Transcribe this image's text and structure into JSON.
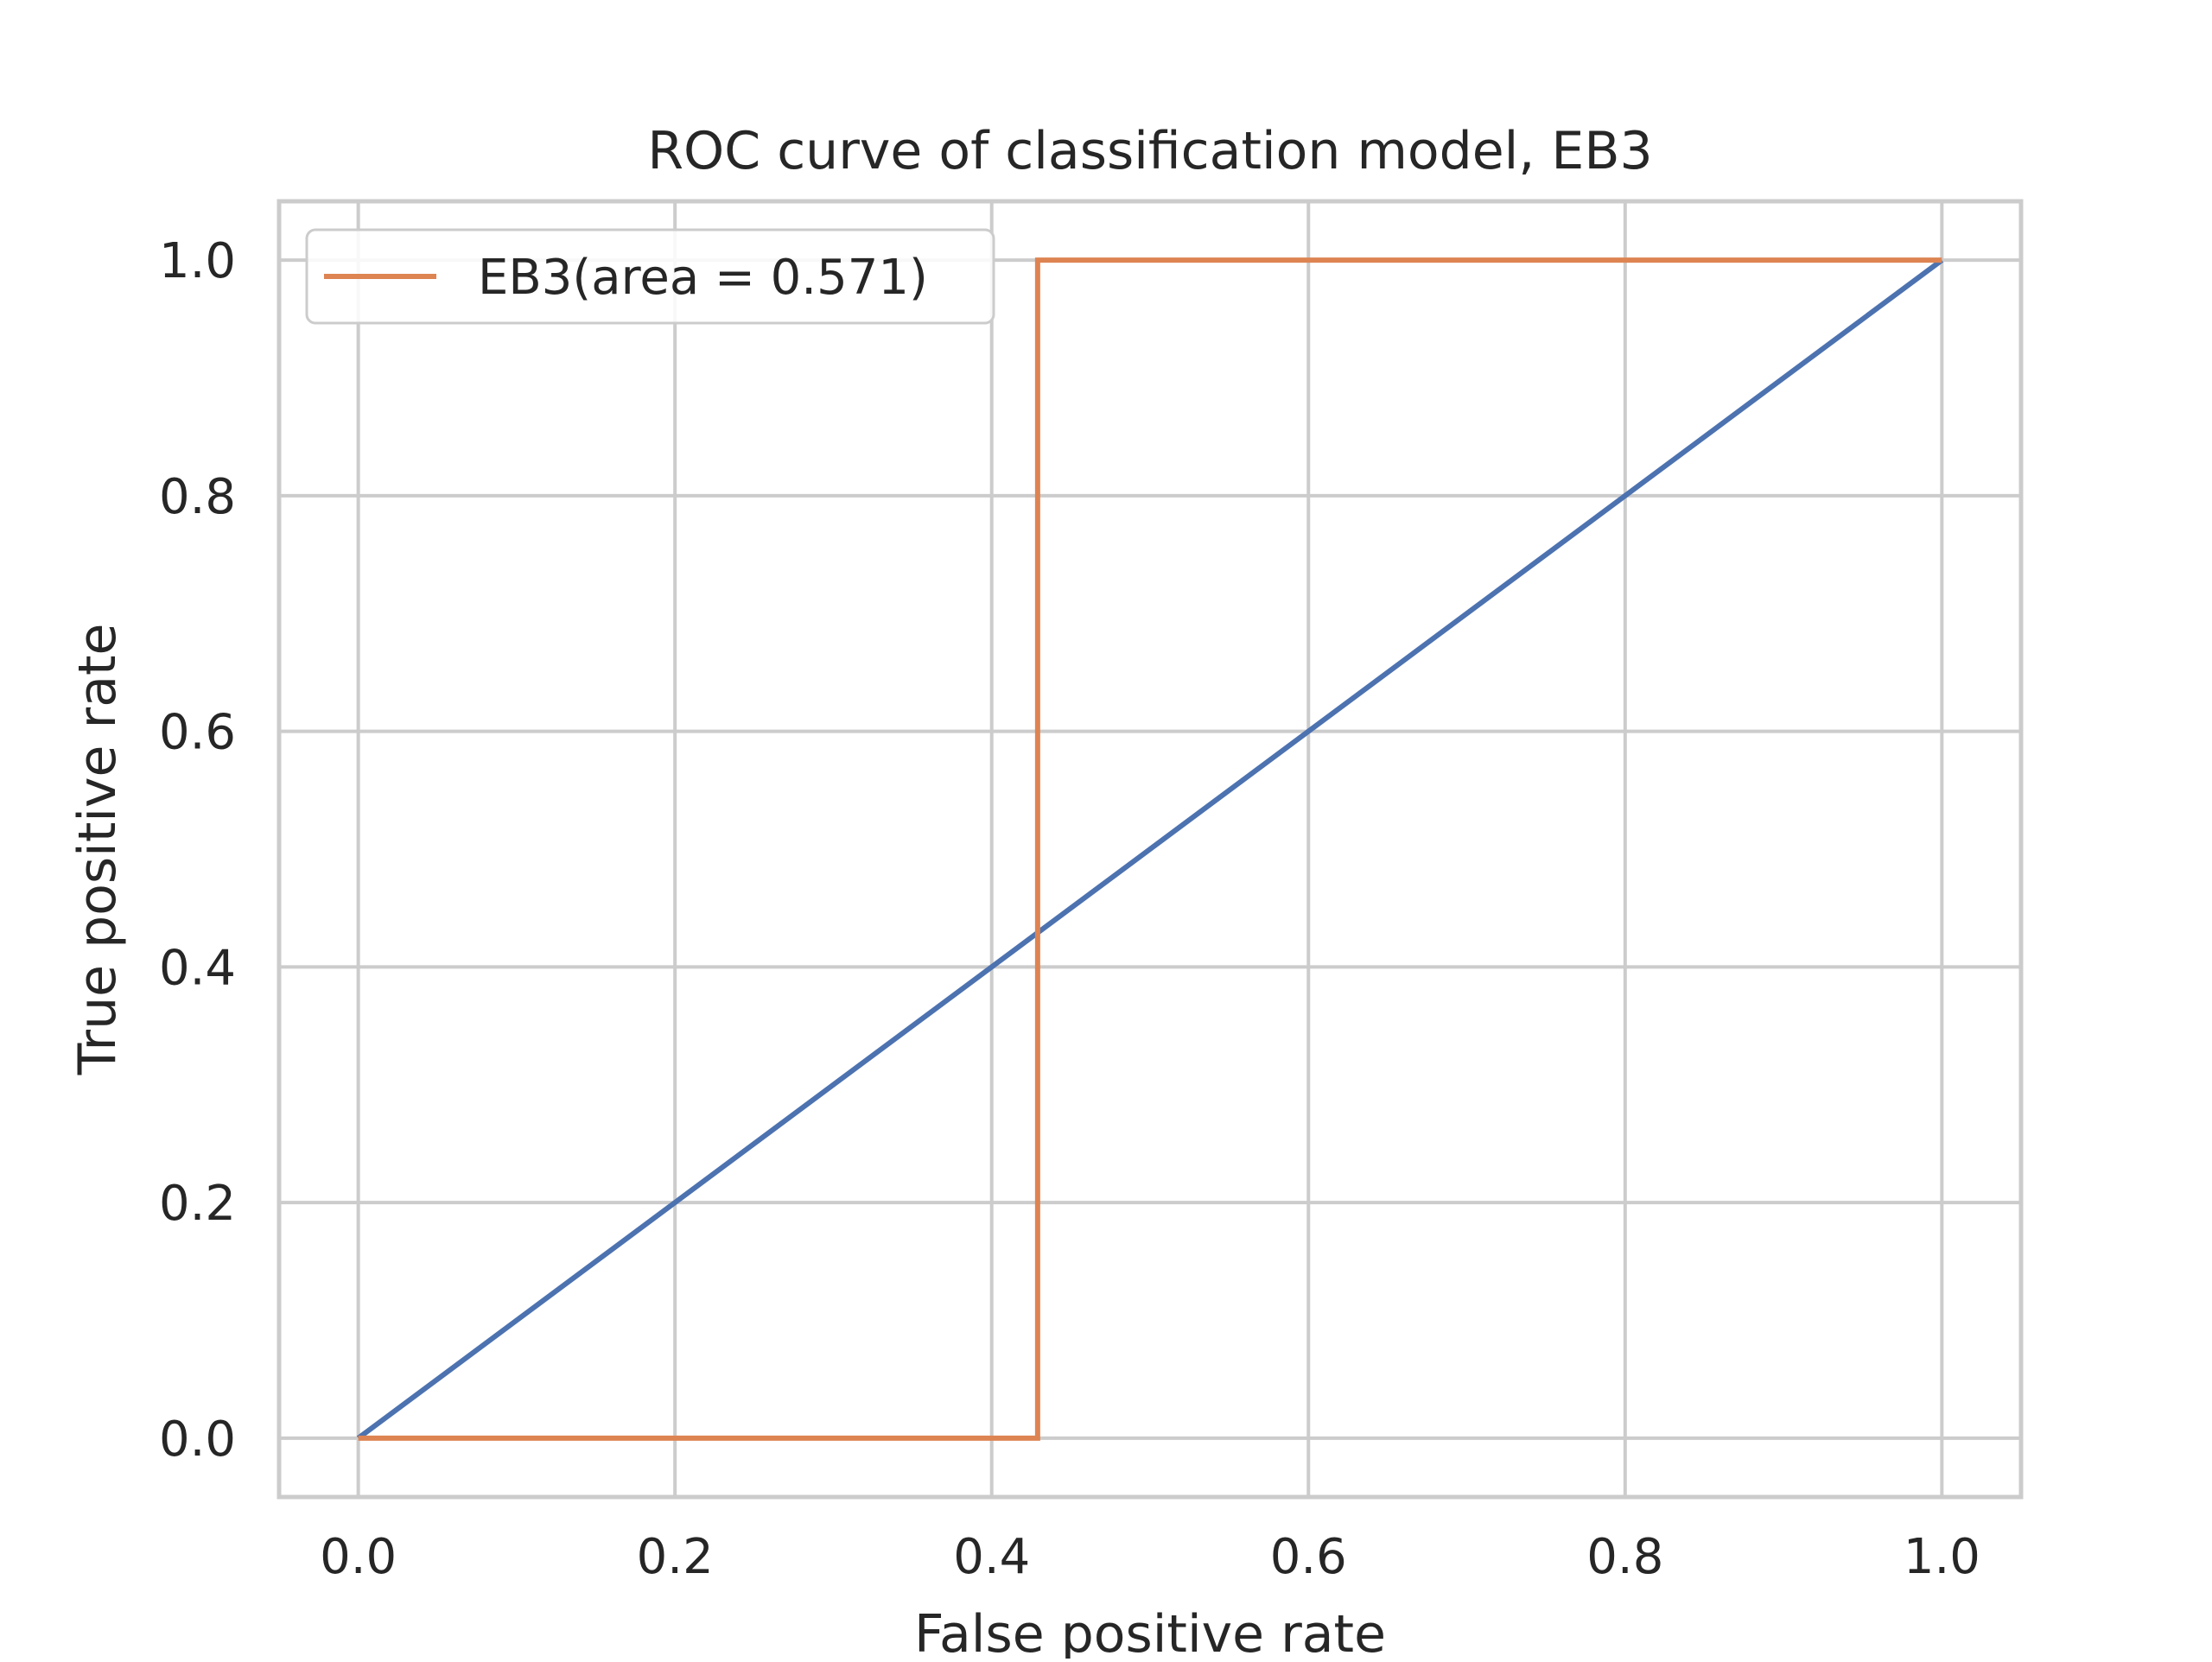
{
  "chart_data": {
    "type": "line",
    "title": "ROC curve of classification model, EB3",
    "xlabel": "False positive rate",
    "ylabel": "True positive rate",
    "xlim": [
      -0.05,
      1.05
    ],
    "ylim": [
      -0.05,
      1.05
    ],
    "xticks": [
      0.0,
      0.2,
      0.4,
      0.6,
      0.8,
      1.0
    ],
    "xtick_labels": [
      "0.0",
      "0.2",
      "0.4",
      "0.6",
      "0.8",
      "1.0"
    ],
    "yticks": [
      0.0,
      0.2,
      0.4,
      0.6,
      0.8,
      1.0
    ],
    "ytick_labels": [
      "0.0",
      "0.2",
      "0.4",
      "0.6",
      "0.8",
      "1.0"
    ],
    "grid": true,
    "legend_position": "upper-left",
    "series": [
      {
        "name": "",
        "color": "#4c72b0",
        "x": [
          0.0,
          1.0
        ],
        "y": [
          0.0,
          1.0
        ],
        "in_legend": false
      },
      {
        "name": "EB3(area = 0.571)",
        "color": "#dd8452",
        "x": [
          0.0,
          0.0,
          0.429,
          0.429,
          1.0
        ],
        "y": [
          0.0,
          0.0,
          0.0,
          1.0,
          1.0
        ],
        "in_legend": true
      }
    ]
  }
}
